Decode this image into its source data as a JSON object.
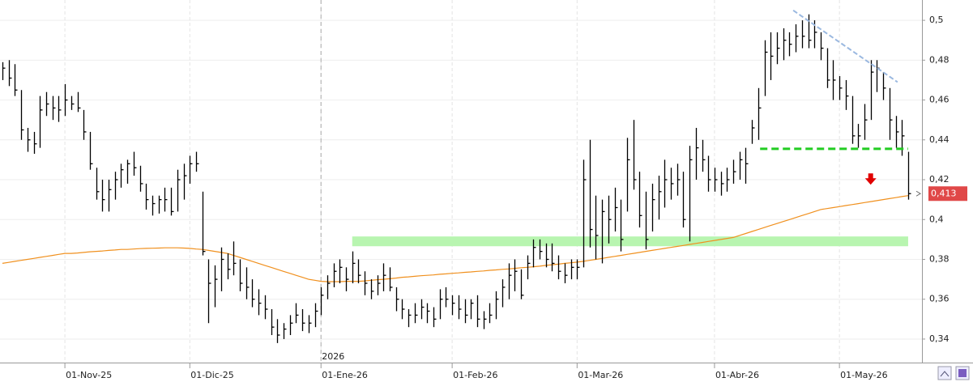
{
  "chart_data": {
    "type": "ohlc",
    "categories": [
      null,
      null,
      null,
      null,
      null,
      null,
      null,
      null,
      null,
      null,
      "01-Nov-25",
      null,
      null,
      null,
      null,
      null,
      null,
      null,
      null,
      null,
      null,
      null,
      null,
      null,
      null,
      null,
      null,
      null,
      null,
      null,
      "01-Dic-25",
      null,
      null,
      null,
      null,
      null,
      null,
      null,
      null,
      null,
      null,
      null,
      null,
      null,
      null,
      null,
      null,
      null,
      null,
      null,
      null,
      "01-Ene-26",
      null,
      null,
      null,
      null,
      null,
      null,
      null,
      null,
      null,
      null,
      null,
      null,
      null,
      null,
      null,
      null,
      null,
      null,
      null,
      null,
      "01-Feb-26",
      null,
      null,
      null,
      null,
      null,
      null,
      null,
      null,
      null,
      null,
      null,
      null,
      null,
      null,
      null,
      null,
      null,
      null,
      null,
      "01-Mar-26",
      null,
      null,
      null,
      null,
      null,
      null,
      null,
      null,
      null,
      null,
      null,
      null,
      null,
      null,
      null,
      null,
      null,
      null,
      null,
      null,
      null,
      "01-Abr-26",
      null,
      null,
      null,
      null,
      null,
      null,
      null,
      null,
      null,
      null,
      null,
      null,
      null,
      null,
      null,
      null,
      null,
      null,
      null,
      "01-May-26",
      null,
      null,
      null,
      null,
      null,
      null,
      null,
      null,
      null,
      null,
      null
    ],
    "high": [
      0.479,
      0.48,
      0.478,
      0.465,
      0.446,
      0.444,
      0.462,
      0.464,
      0.462,
      0.462,
      0.468,
      0.462,
      0.464,
      0.455,
      0.444,
      0.426,
      0.42,
      0.42,
      0.424,
      0.428,
      0.43,
      0.434,
      0.427,
      0.418,
      0.412,
      0.412,
      0.416,
      0.416,
      0.425,
      0.428,
      0.432,
      0.434,
      0.414,
      0.38,
      0.377,
      0.386,
      0.383,
      0.389,
      0.38,
      0.376,
      0.37,
      0.365,
      0.362,
      0.355,
      0.35,
      0.348,
      0.352,
      0.358,
      0.355,
      0.352,
      0.358,
      0.366,
      0.372,
      0.378,
      0.38,
      0.376,
      0.384,
      0.38,
      0.374,
      0.37,
      0.372,
      0.378,
      0.376,
      0.366,
      0.36,
      0.355,
      0.358,
      0.36,
      0.358,
      0.356,
      0.365,
      0.366,
      0.362,
      0.362,
      0.36,
      0.36,
      0.362,
      0.354,
      0.358,
      0.364,
      0.37,
      0.378,
      0.38,
      0.375,
      0.382,
      0.39,
      0.39,
      0.388,
      0.388,
      0.382,
      0.378,
      0.38,
      0.38,
      0.43,
      0.44,
      0.412,
      0.41,
      0.412,
      0.416,
      0.41,
      0.441,
      0.45,
      0.424,
      0.414,
      0.418,
      0.422,
      0.43,
      0.426,
      0.428,
      0.424,
      0.437,
      0.446,
      0.44,
      0.432,
      0.426,
      0.424,
      0.426,
      0.43,
      0.434,
      0.436,
      0.45,
      0.466,
      0.49,
      0.494,
      0.494,
      0.496,
      0.494,
      0.498,
      0.5,
      0.503,
      0.5,
      0.494,
      0.486,
      0.48,
      0.472,
      0.47,
      0.462,
      0.448,
      0.458,
      0.48,
      0.48,
      0.474,
      0.466,
      0.452,
      0.45,
      0.434
    ],
    "low": [
      0.47,
      0.467,
      0.462,
      0.44,
      0.434,
      0.433,
      0.436,
      0.452,
      0.45,
      0.449,
      0.452,
      0.455,
      0.454,
      0.44,
      0.425,
      0.41,
      0.404,
      0.404,
      0.41,
      0.416,
      0.418,
      0.422,
      0.414,
      0.405,
      0.402,
      0.403,
      0.404,
      0.402,
      0.404,
      0.41,
      0.418,
      0.424,
      0.382,
      0.348,
      0.356,
      0.364,
      0.37,
      0.372,
      0.364,
      0.36,
      0.356,
      0.352,
      0.35,
      0.342,
      0.338,
      0.34,
      0.342,
      0.348,
      0.344,
      0.343,
      0.346,
      0.352,
      0.36,
      0.366,
      0.368,
      0.364,
      0.368,
      0.368,
      0.362,
      0.36,
      0.362,
      0.364,
      0.364,
      0.354,
      0.35,
      0.346,
      0.348,
      0.35,
      0.348,
      0.346,
      0.35,
      0.356,
      0.352,
      0.35,
      0.348,
      0.35,
      0.346,
      0.345,
      0.348,
      0.35,
      0.356,
      0.36,
      0.364,
      0.36,
      0.37,
      0.376,
      0.38,
      0.376,
      0.374,
      0.37,
      0.368,
      0.37,
      0.37,
      0.376,
      0.386,
      0.38,
      0.378,
      0.388,
      0.394,
      0.384,
      0.404,
      0.415,
      0.396,
      0.385,
      0.394,
      0.4,
      0.406,
      0.41,
      0.412,
      0.396,
      0.389,
      0.42,
      0.424,
      0.414,
      0.414,
      0.412,
      0.414,
      0.418,
      0.42,
      0.418,
      0.438,
      0.44,
      0.462,
      0.47,
      0.478,
      0.48,
      0.482,
      0.484,
      0.486,
      0.486,
      0.486,
      0.48,
      0.466,
      0.46,
      0.46,
      0.455,
      0.438,
      0.436,
      0.44,
      0.45,
      0.464,
      0.46,
      0.44,
      0.436,
      0.432,
      0.41
    ],
    "close": [
      0.476,
      0.471,
      0.465,
      0.445,
      0.44,
      0.438,
      0.455,
      0.458,
      0.456,
      0.455,
      0.46,
      0.458,
      0.456,
      0.444,
      0.428,
      0.414,
      0.41,
      0.415,
      0.42,
      0.425,
      0.428,
      0.426,
      0.418,
      0.41,
      0.408,
      0.41,
      0.41,
      0.404,
      0.42,
      0.422,
      0.428,
      0.428,
      0.384,
      0.368,
      0.37,
      0.38,
      0.375,
      0.378,
      0.368,
      0.366,
      0.36,
      0.358,
      0.355,
      0.346,
      0.342,
      0.345,
      0.348,
      0.352,
      0.348,
      0.348,
      0.354,
      0.362,
      0.368,
      0.374,
      0.376,
      0.37,
      0.378,
      0.372,
      0.368,
      0.364,
      0.368,
      0.372,
      0.366,
      0.36,
      0.355,
      0.352,
      0.352,
      0.356,
      0.354,
      0.35,
      0.36,
      0.36,
      0.358,
      0.355,
      0.352,
      0.358,
      0.35,
      0.35,
      0.352,
      0.36,
      0.366,
      0.372,
      0.374,
      0.362,
      0.378,
      0.386,
      0.384,
      0.38,
      0.378,
      0.374,
      0.372,
      0.376,
      0.376,
      0.42,
      0.395,
      0.392,
      0.404,
      0.4,
      0.406,
      0.39,
      0.43,
      0.42,
      0.402,
      0.39,
      0.41,
      0.414,
      0.42,
      0.418,
      0.42,
      0.4,
      0.43,
      0.436,
      0.43,
      0.42,
      0.42,
      0.418,
      0.42,
      0.424,
      0.43,
      0.428,
      0.446,
      0.456,
      0.484,
      0.482,
      0.486,
      0.49,
      0.488,
      0.492,
      0.492,
      0.49,
      0.494,
      0.486,
      0.47,
      0.47,
      0.466,
      0.462,
      0.442,
      0.442,
      0.45,
      0.474,
      0.476,
      0.466,
      0.45,
      0.444,
      0.442,
      0.413
    ],
    "color": "#000000",
    "ma": {
      "color": "#f0901e",
      "values": [
        0.378,
        0.3785,
        0.379,
        0.3795,
        0.38,
        0.3805,
        0.381,
        0.3815,
        0.382,
        0.3825,
        0.383,
        0.383,
        0.3832,
        0.3835,
        0.3838,
        0.384,
        0.3842,
        0.3845,
        0.3847,
        0.385,
        0.385,
        0.3852,
        0.3854,
        0.3855,
        0.3856,
        0.3857,
        0.3858,
        0.3858,
        0.3858,
        0.3857,
        0.3855,
        0.3852,
        0.385,
        0.3845,
        0.384,
        0.3835,
        0.383,
        0.382,
        0.381,
        0.38,
        0.379,
        0.378,
        0.377,
        0.376,
        0.375,
        0.374,
        0.373,
        0.372,
        0.371,
        0.37,
        0.3695,
        0.369,
        0.3688,
        0.3688,
        0.3688,
        0.369,
        0.369,
        0.369,
        0.3692,
        0.3695,
        0.3698,
        0.37,
        0.3703,
        0.3706,
        0.371,
        0.3712,
        0.3715,
        0.3718,
        0.372,
        0.3722,
        0.3725,
        0.3727,
        0.373,
        0.3732,
        0.3735,
        0.3737,
        0.374,
        0.3742,
        0.3745,
        0.3747,
        0.375,
        0.3752,
        0.3755,
        0.3758,
        0.376,
        0.3763,
        0.3766,
        0.377,
        0.3773,
        0.3776,
        0.378,
        0.3783,
        0.3786,
        0.379,
        0.3795,
        0.38,
        0.3805,
        0.381,
        0.3815,
        0.382,
        0.3825,
        0.383,
        0.3835,
        0.384,
        0.3845,
        0.385,
        0.3855,
        0.386,
        0.3865,
        0.387,
        0.3875,
        0.388,
        0.3885,
        0.389,
        0.3895,
        0.39,
        0.3905,
        0.391,
        0.392,
        0.393,
        0.394,
        0.395,
        0.396,
        0.397,
        0.398,
        0.399,
        0.4,
        0.401,
        0.402,
        0.403,
        0.404,
        0.405,
        0.4055,
        0.406,
        0.4065,
        0.407,
        0.4075,
        0.408,
        0.4085,
        0.409,
        0.4095,
        0.41,
        0.4105,
        0.411,
        0.4115,
        0.412
      ]
    },
    "ylim": [
      0.3286,
      0.5102
    ],
    "yticks": [
      {
        "value": 0.34,
        "label": "0,34"
      },
      {
        "value": 0.36,
        "label": "0,36"
      },
      {
        "value": 0.38,
        "label": "0,38"
      },
      {
        "value": 0.4,
        "label": "0,4"
      },
      {
        "value": 0.42,
        "label": "0,42"
      },
      {
        "value": 0.44,
        "label": "0,44"
      },
      {
        "value": 0.46,
        "label": "0,46"
      },
      {
        "value": 0.48,
        "label": "0,48"
      },
      {
        "value": 0.5,
        "label": "0,5"
      }
    ],
    "grid": true,
    "year_marker": {
      "index": 51,
      "label": "2026"
    },
    "zone": {
      "color": "#b8f5b0",
      "from": 56,
      "to": 145,
      "low": 0.3866,
      "high": 0.3915
    },
    "support_line": {
      "color": "#22cc22",
      "from": 121.3,
      "to": 145,
      "value": 0.4355
    },
    "trend_line": {
      "color": "#9ab8e0",
      "from": [
        126.6,
        0.505
      ],
      "to": [
        143.3,
        0.469
      ]
    },
    "arrow": {
      "color": "#e00000",
      "index": 139,
      "value": 0.4195
    },
    "last_price": {
      "value": 0.413,
      "label": "0,413",
      "color": "#e04848"
    }
  }
}
